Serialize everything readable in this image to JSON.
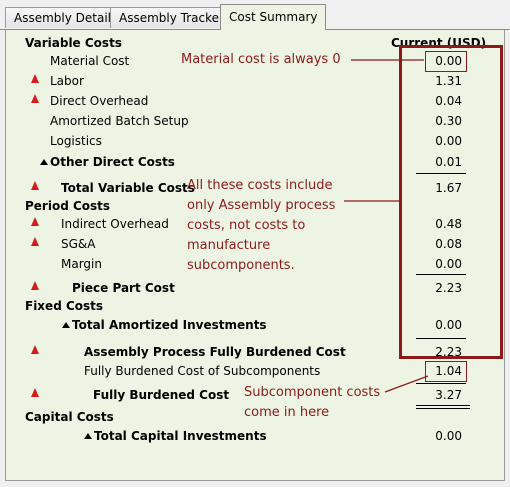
{
  "tabs": [
    {
      "label": "Assembly Details"
    },
    {
      "label": "Assembly Tracker"
    },
    {
      "label": "Cost Summary"
    }
  ],
  "header": {
    "section": "Variable Costs",
    "currency_col": "Current (USD)"
  },
  "rows": {
    "material_cost": {
      "label": "Material Cost",
      "value": "0.00"
    },
    "labor": {
      "label": "Labor",
      "value": "1.31"
    },
    "direct_overhead": {
      "label": "Direct Overhead",
      "value": "0.04"
    },
    "amortized_batch_setup": {
      "label": "Amortized Batch Setup",
      "value": "0.30"
    },
    "logistics": {
      "label": "Logistics",
      "value": "0.00"
    },
    "other_direct_costs": {
      "label": "Other Direct Costs",
      "value": "0.01"
    },
    "total_variable_costs": {
      "label": "Total Variable Costs",
      "value": "1.67"
    },
    "period_costs": {
      "label": "Period Costs"
    },
    "indirect_overhead": {
      "label": "Indirect Overhead",
      "value": "0.48"
    },
    "sga": {
      "label": "SG&A",
      "value": "0.08"
    },
    "margin": {
      "label": "Margin",
      "value": "0.00"
    },
    "piece_part_cost": {
      "label": "Piece Part Cost",
      "value": "2.23"
    },
    "fixed_costs": {
      "label": "Fixed Costs"
    },
    "total_amortized_investments": {
      "label": "Total Amortized Investments",
      "value": "0.00"
    },
    "assembly_process_fbc": {
      "label": "Assembly Process Fully Burdened Cost",
      "value": "2.23"
    },
    "fbc_subcomponents": {
      "label": "Fully Burdened Cost of Subcomponents",
      "value": "1.04"
    },
    "fully_burdened_cost": {
      "label": "Fully Burdened Cost",
      "value": "3.27"
    },
    "capital_costs": {
      "label": "Capital Costs"
    },
    "total_capital_investments": {
      "label": "Total Capital Investments",
      "value": "0.00"
    }
  },
  "annotations": {
    "material": "Material cost is always 0",
    "assembly": [
      "All these costs include",
      "only Assembly process",
      "costs, not costs to",
      "manufacture",
      "subcomponents."
    ],
    "subcomponent": [
      "Subcomponent costs",
      "come in here"
    ]
  },
  "colors": {
    "panel_bg": "#eef4e4",
    "annotation": "#8b1a1a",
    "warning_triangle": "#d41c1c"
  },
  "icons": {
    "warning": "red-triangle-icon",
    "expand": "expand-triangle-icon"
  }
}
